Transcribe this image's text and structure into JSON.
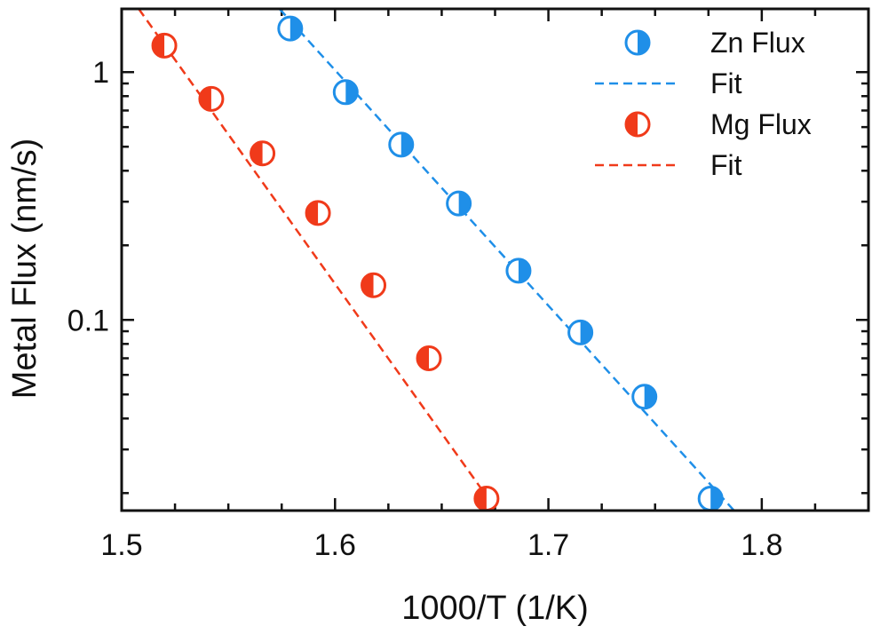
{
  "chart_data": {
    "type": "scatter",
    "xlabel": "1000/T (1/K)",
    "ylabel": "Metal Flux  (nm/s)",
    "xlim": [
      1.5,
      1.85
    ],
    "ylim": [
      0.017,
      1.8
    ],
    "yscale": "log",
    "x_ticks": [
      {
        "value": 1.5,
        "label": "1.5"
      },
      {
        "value": 1.6,
        "label": "1.6"
      },
      {
        "value": 1.7,
        "label": "1.7"
      },
      {
        "value": 1.8,
        "label": "1.8"
      }
    ],
    "y_ticks": [
      {
        "value": 0.1,
        "label": "0.1"
      },
      {
        "value": 1,
        "label": "1"
      }
    ],
    "legend_position": "top-right",
    "series": [
      {
        "name": "Zn Flux",
        "kind": "points",
        "color": "#1f8fe8",
        "x": [
          1.579,
          1.605,
          1.631,
          1.658,
          1.686,
          1.715,
          1.745,
          1.776
        ],
        "y": [
          1.5,
          0.83,
          0.51,
          0.295,
          0.158,
          0.089,
          0.049,
          0.019
        ]
      },
      {
        "name": "Fit",
        "kind": "line",
        "color": "#1f8fe8",
        "x": [
          1.574,
          1.787
        ],
        "y": [
          1.8,
          0.017
        ]
      },
      {
        "name": "Mg Flux",
        "kind": "points",
        "color": "#f03a1a",
        "x": [
          1.52,
          1.542,
          1.566,
          1.592,
          1.618,
          1.644,
          1.671
        ],
        "y": [
          1.28,
          0.78,
          0.47,
          0.27,
          0.138,
          0.07,
          0.019
        ]
      },
      {
        "name": "Fit",
        "kind": "line",
        "color": "#f03a1a",
        "x": [
          1.508,
          1.67
        ],
        "y": [
          1.8,
          0.02
        ]
      }
    ]
  }
}
